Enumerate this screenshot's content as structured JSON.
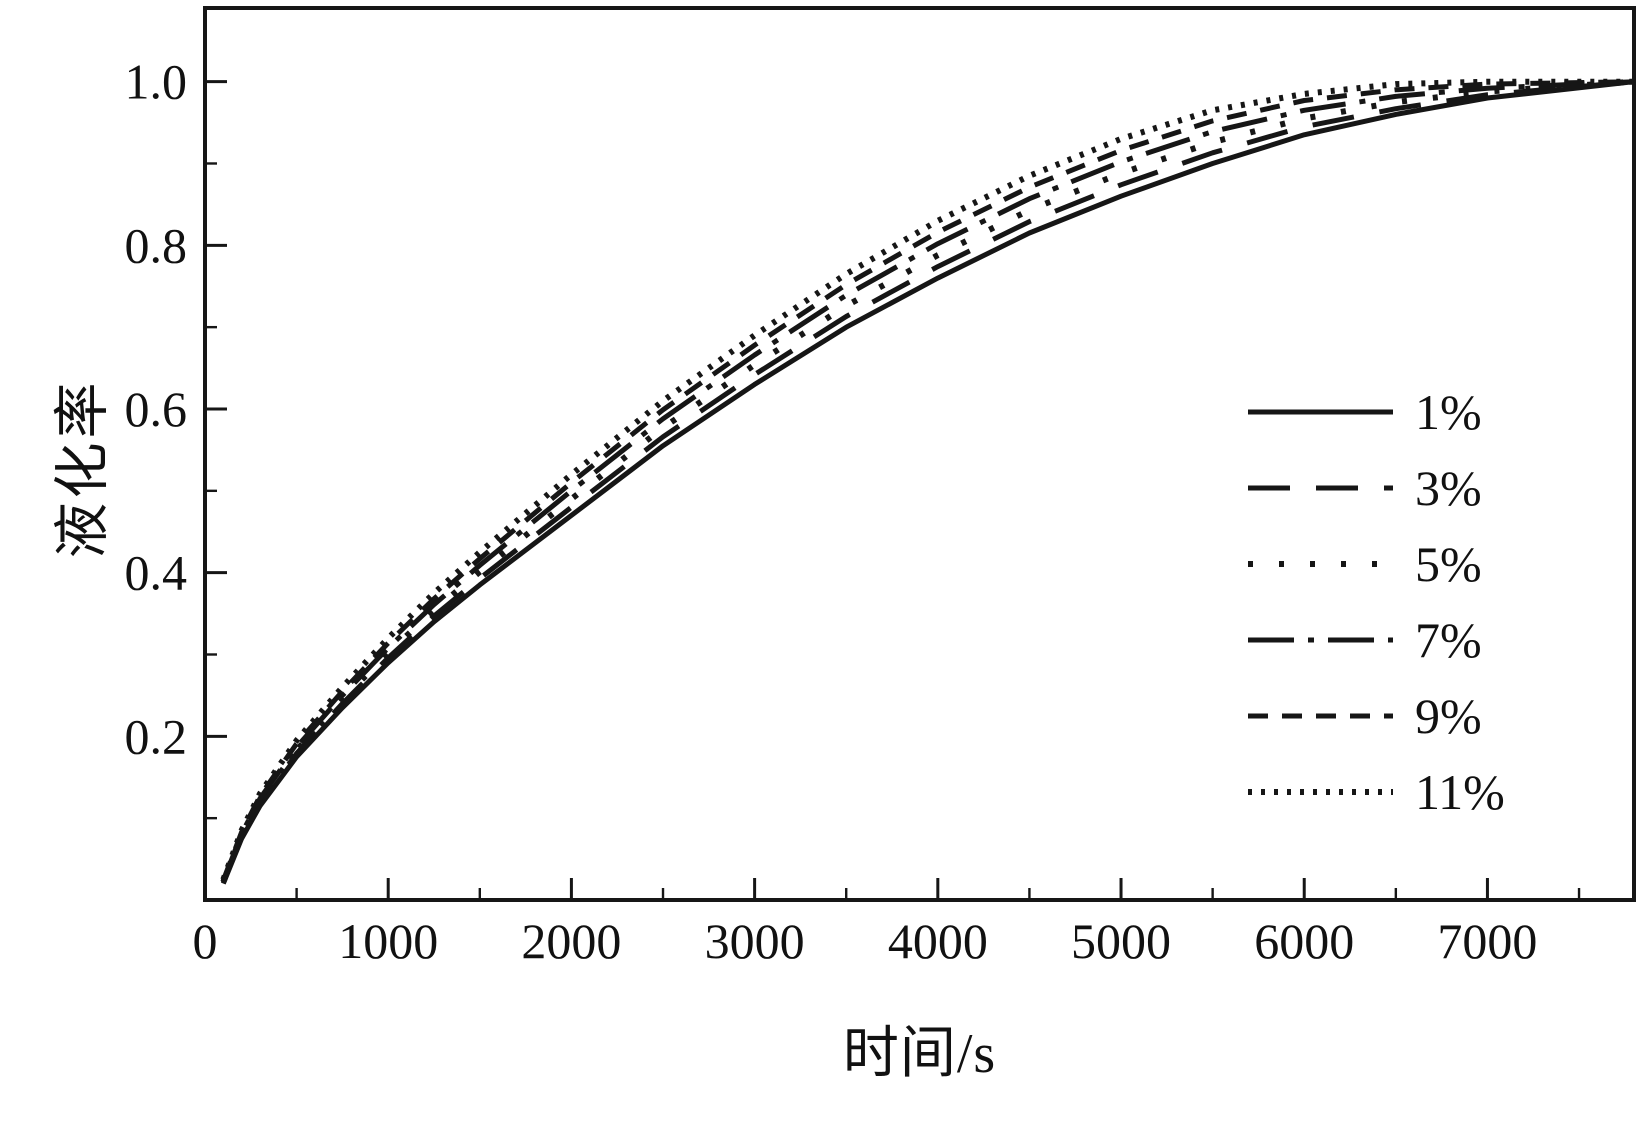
{
  "figure": {
    "background": "#ffffff",
    "line_color": "#161616"
  },
  "chart_data": {
    "type": "line",
    "title": "",
    "xlabel": "时间/s",
    "ylabel": "液化率",
    "xlim": [
      0,
      7800
    ],
    "ylim": [
      0,
      1.09
    ],
    "grid": false,
    "legend_position": "right-center",
    "x_ticks": [
      0,
      1000,
      2000,
      3000,
      4000,
      5000,
      6000,
      7000
    ],
    "x_minor_ticks": [
      500,
      1500,
      2500,
      3500,
      4500,
      5500,
      6500,
      7500
    ],
    "y_ticks": [
      0.2,
      0.4,
      0.6,
      0.8,
      1.0
    ],
    "y_minor_ticks": [
      0.1,
      0.3,
      0.5,
      0.7,
      0.9
    ],
    "x": [
      100,
      200,
      300,
      500,
      750,
      1000,
      1250,
      1500,
      2000,
      2500,
      3000,
      3500,
      4000,
      4500,
      5000,
      5500,
      6000,
      6500,
      7000,
      7800
    ],
    "series": [
      {
        "name": "1%",
        "style": "solid",
        "values": [
          0.02,
          0.075,
          0.115,
          0.175,
          0.235,
          0.29,
          0.34,
          0.385,
          0.47,
          0.555,
          0.63,
          0.7,
          0.76,
          0.815,
          0.86,
          0.9,
          0.935,
          0.96,
          0.98,
          1.0
        ]
      },
      {
        "name": "3%",
        "style": "long-dash",
        "values": [
          0.021,
          0.077,
          0.118,
          0.179,
          0.24,
          0.296,
          0.347,
          0.393,
          0.48,
          0.566,
          0.642,
          0.713,
          0.774,
          0.829,
          0.874,
          0.913,
          0.945,
          0.967,
          0.984,
          1.0
        ]
      },
      {
        "name": "5%",
        "style": "dot",
        "values": [
          0.022,
          0.079,
          0.121,
          0.183,
          0.245,
          0.302,
          0.354,
          0.401,
          0.49,
          0.577,
          0.654,
          0.726,
          0.788,
          0.843,
          0.888,
          0.926,
          0.955,
          0.975,
          0.988,
          1.0
        ]
      },
      {
        "name": "7%",
        "style": "dash-dot",
        "values": [
          0.023,
          0.081,
          0.124,
          0.187,
          0.25,
          0.308,
          0.361,
          0.409,
          0.5,
          0.588,
          0.666,
          0.739,
          0.802,
          0.857,
          0.902,
          0.939,
          0.965,
          0.982,
          0.992,
          1.0
        ]
      },
      {
        "name": "9%",
        "style": "dash",
        "values": [
          0.024,
          0.083,
          0.127,
          0.191,
          0.255,
          0.314,
          0.368,
          0.417,
          0.51,
          0.599,
          0.678,
          0.752,
          0.816,
          0.871,
          0.916,
          0.952,
          0.977,
          0.99,
          0.997,
          1.0
        ]
      },
      {
        "name": "11%",
        "style": "fine-dot",
        "values": [
          0.025,
          0.085,
          0.13,
          0.195,
          0.26,
          0.32,
          0.375,
          0.425,
          0.52,
          0.61,
          0.69,
          0.765,
          0.83,
          0.885,
          0.93,
          0.965,
          0.985,
          0.997,
          1.0,
          1.0
        ]
      }
    ]
  }
}
